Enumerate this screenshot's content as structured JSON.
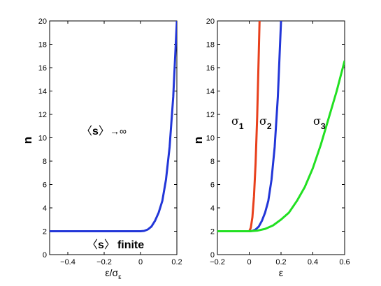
{
  "chart_data": [
    {
      "type": "line",
      "xlabel": "ε/σ",
      "xlabel_sub": "ε",
      "ylabel": "n",
      "xlim": [
        -0.5,
        0.2
      ],
      "ylim": [
        0,
        20
      ],
      "xticks": [
        -0.4,
        -0.2,
        0,
        0.2
      ],
      "xtick_labels": [
        "−0.4",
        "−0.2",
        "0",
        "0.2"
      ],
      "yticks": [
        0,
        2,
        4,
        6,
        8,
        10,
        12,
        14,
        16,
        18,
        20
      ],
      "ytick_labels": [
        "0",
        "2",
        "4",
        "6",
        "8",
        "10",
        "12",
        "14",
        "16",
        "18",
        "20"
      ],
      "series": [
        {
          "color": "#2236d8",
          "x": [
            -0.5,
            -0.4,
            -0.3,
            -0.2,
            -0.1,
            0,
            0.02,
            0.04,
            0.06,
            0.08,
            0.1,
            0.12,
            0.14,
            0.16,
            0.18,
            0.2
          ],
          "y": [
            2,
            2,
            2,
            2,
            2,
            2,
            2.03,
            2.15,
            2.4,
            2.9,
            3.6,
            4.6,
            6.4,
            9.2,
            13.5,
            20
          ]
        }
      ],
      "annotations": {
        "upper_open": "〈",
        "upper_s": "s",
        "upper_close": "〉",
        "upper_tail": "→∞",
        "lower_open": "〈",
        "lower_s": "s",
        "lower_close": "〉",
        "lower_tail": "finite"
      }
    },
    {
      "type": "line",
      "xlabel": "ε",
      "ylabel": "n",
      "xlim": [
        -0.2,
        0.6
      ],
      "ylim": [
        0,
        20
      ],
      "xticks": [
        -0.2,
        0,
        0.2,
        0.4,
        0.6
      ],
      "xtick_labels": [
        "−0.2",
        "0",
        "0.2",
        "0.4",
        "0.6"
      ],
      "yticks": [
        0,
        2,
        4,
        6,
        8,
        10,
        12,
        14,
        16,
        18,
        20
      ],
      "ytick_labels": [
        "0",
        "2",
        "4",
        "6",
        "8",
        "10",
        "12",
        "14",
        "16",
        "18",
        "20"
      ],
      "series": [
        {
          "color": "#e8401c",
          "x": [
            -0.2,
            0,
            0.01,
            0.02,
            0.03,
            0.04,
            0.05,
            0.06,
            0.065
          ],
          "y": [
            2,
            2,
            2.3,
            3.2,
            5,
            7.8,
            11.8,
            17.2,
            20
          ]
        },
        {
          "color": "#2236d8",
          "x": [
            -0.2,
            0,
            0.02,
            0.04,
            0.06,
            0.08,
            0.1,
            0.12,
            0.14,
            0.16,
            0.18,
            0.2
          ],
          "y": [
            2,
            2,
            2.03,
            2.15,
            2.4,
            2.9,
            3.6,
            4.6,
            6.4,
            9.2,
            13.5,
            20
          ]
        },
        {
          "color": "#22e022",
          "x": [
            -0.2,
            0,
            0.05,
            0.1,
            0.15,
            0.2,
            0.25,
            0.3,
            0.35,
            0.4,
            0.45,
            0.5,
            0.55,
            0.6
          ],
          "y": [
            2,
            2,
            2.05,
            2.2,
            2.5,
            3.0,
            3.6,
            4.6,
            5.8,
            7.4,
            9.4,
            11.7,
            14.0,
            16.6
          ]
        }
      ],
      "annotations": {
        "sigma1_main": "σ",
        "sigma1_sub": "1",
        "sigma2_main": "σ",
        "sigma2_sub": "2",
        "sigma3_main": "σ",
        "sigma3_sub": "3"
      }
    }
  ]
}
